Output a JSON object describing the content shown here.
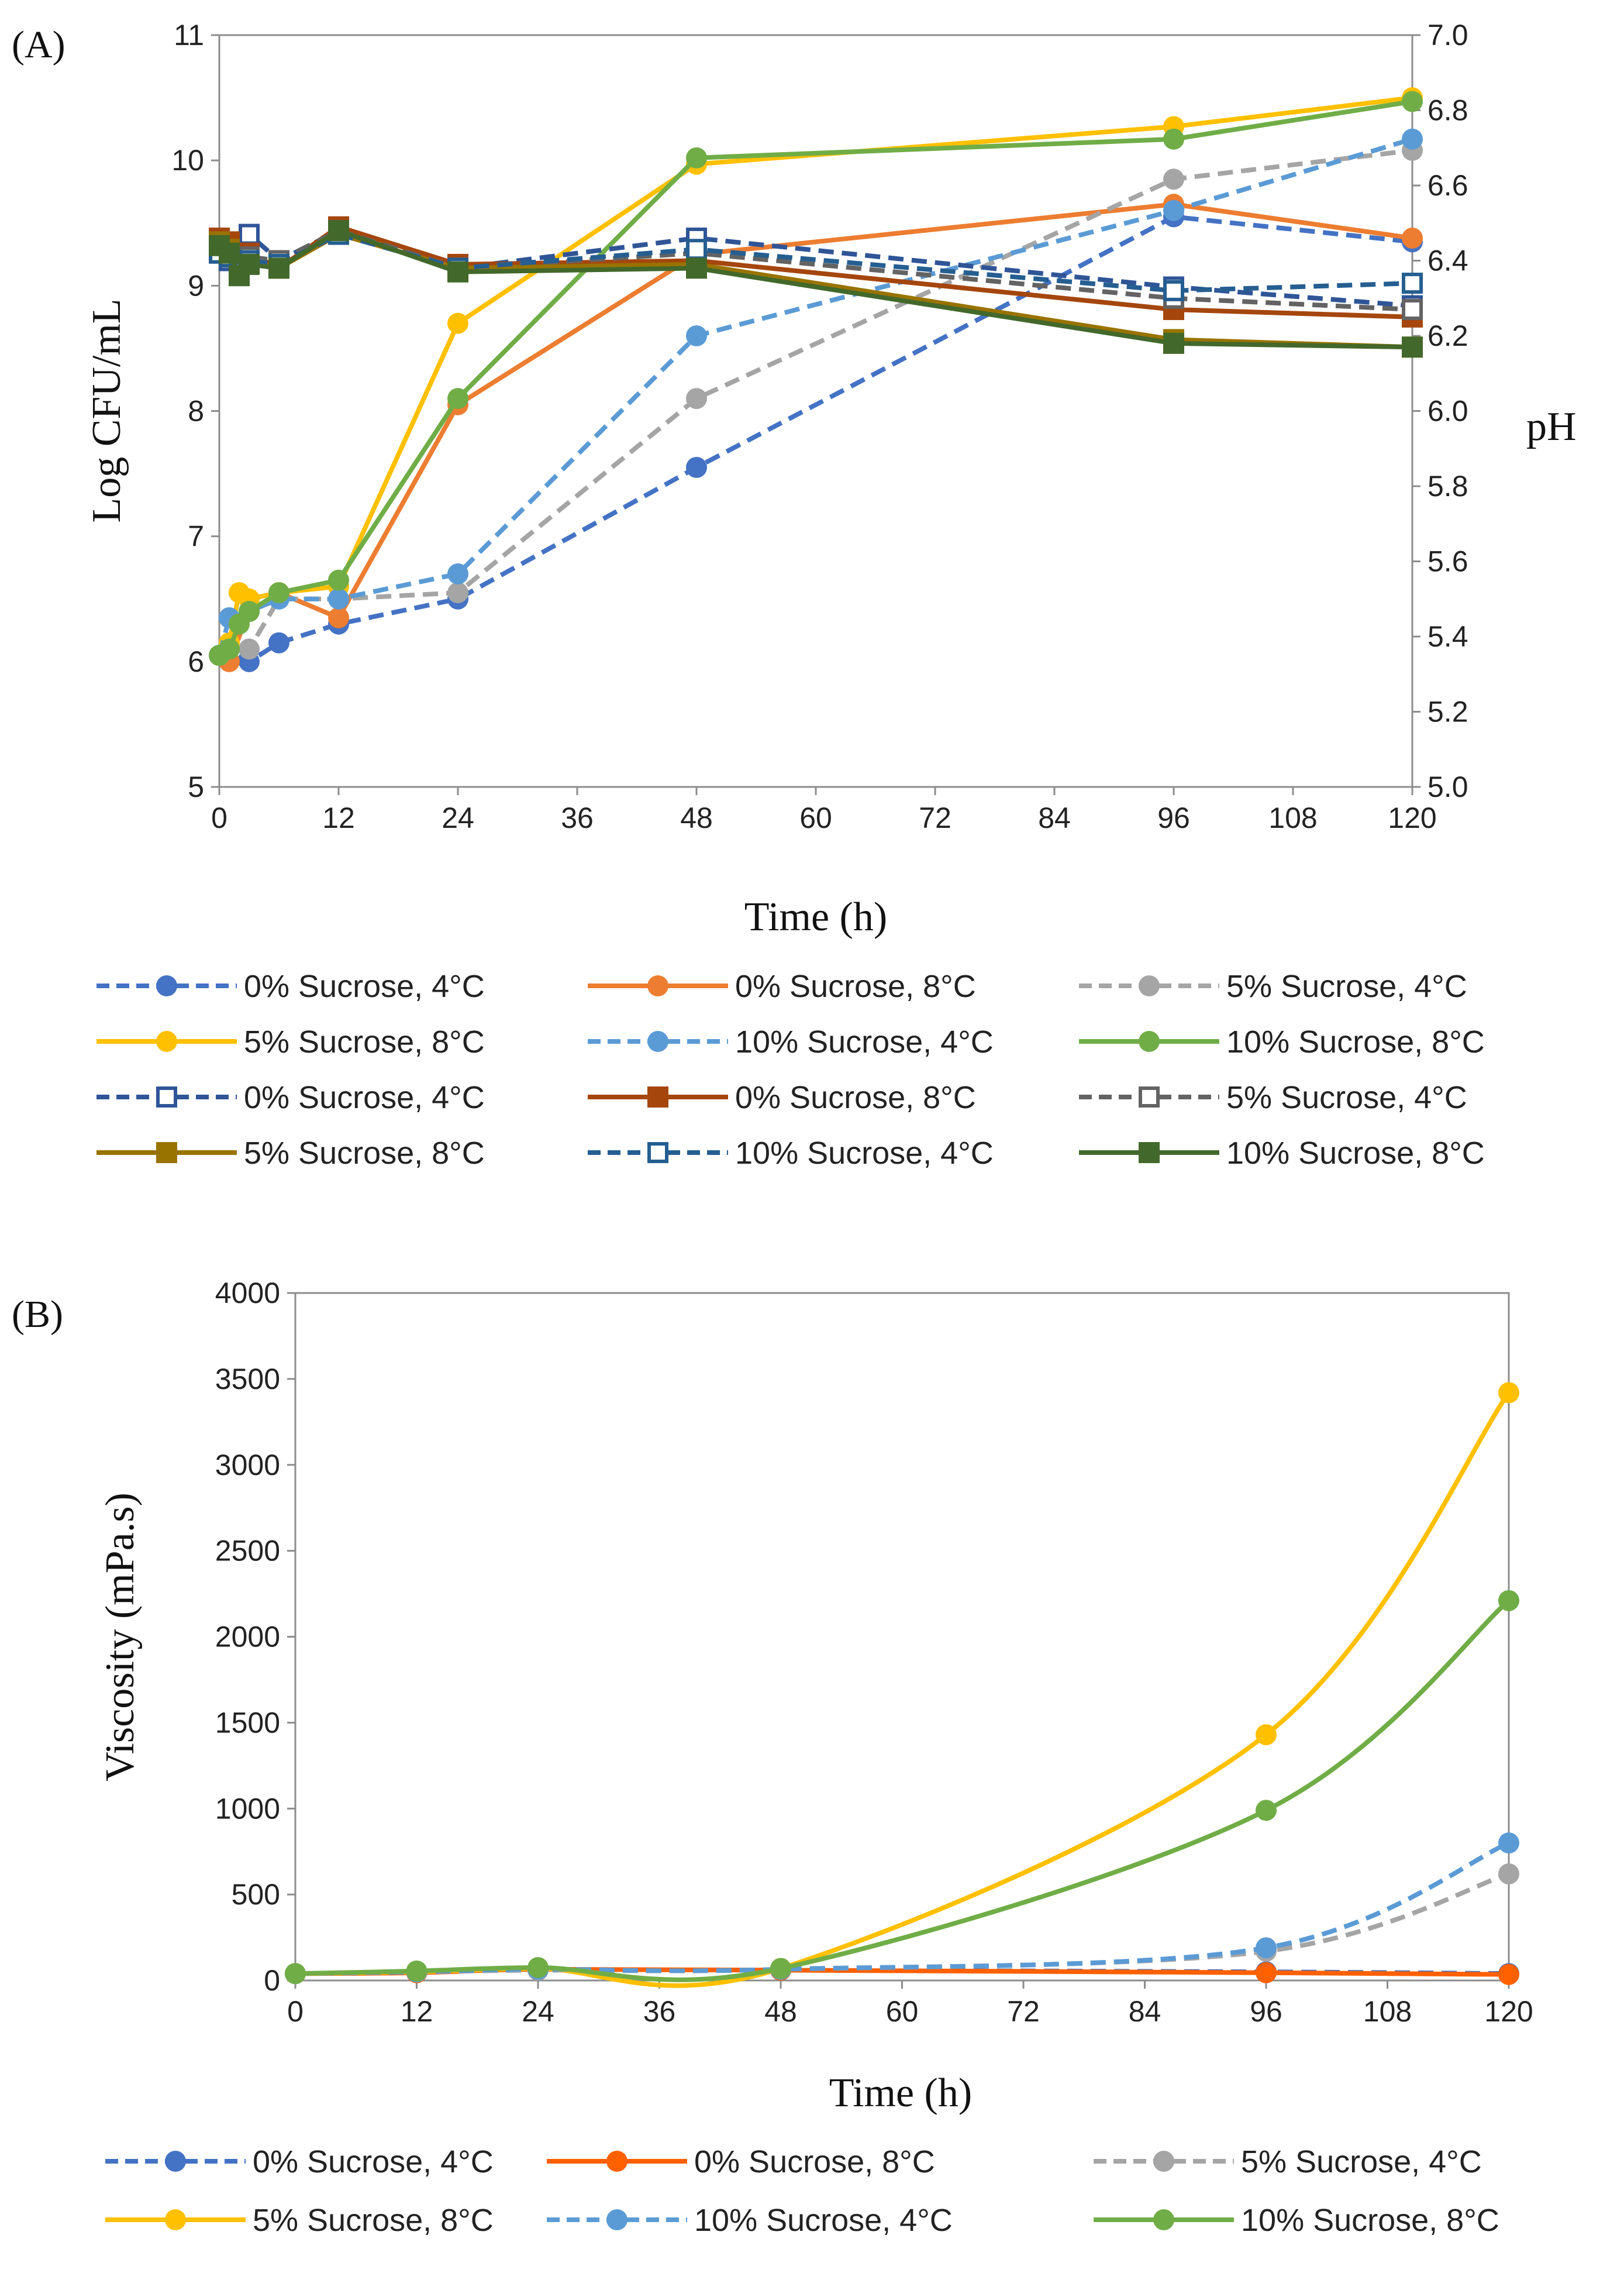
{
  "chart_data": [
    {
      "id": "A",
      "panel_label": "(A)",
      "type": "line",
      "xlabel": "Time (h)",
      "ylabel": "Log CFU/mL",
      "y2label": "pH",
      "xlim": [
        0,
        120
      ],
      "ylim": [
        5,
        11
      ],
      "y2lim": [
        5.0,
        7.0
      ],
      "x_ticks": [
        "0",
        "12",
        "24",
        "36",
        "48",
        "60",
        "72",
        "84",
        "96",
        "108",
        "120"
      ],
      "y_ticks": [
        "5",
        "6",
        "7",
        "8",
        "9",
        "10",
        "11"
      ],
      "y2_ticks": [
        "5.0",
        "5.2",
        "5.4",
        "5.6",
        "5.8",
        "6.0",
        "6.2",
        "6.4",
        "6.6",
        "6.8",
        "7.0"
      ],
      "grid": false,
      "legend_position": "bottom",
      "series": [
        {
          "name": "0% Sucrose, 4°C",
          "axis": "left",
          "color": "#4472C4",
          "dash": true,
          "marker": "circle",
          "x": [
            0,
            1,
            3,
            6,
            12,
            24,
            48,
            96,
            120
          ],
          "y": [
            6.05,
            6.1,
            6.0,
            6.15,
            6.3,
            6.5,
            7.55,
            9.55,
            9.35
          ]
        },
        {
          "name": "0% Sucrose, 8°C",
          "axis": "left",
          "color": "#ED7D31",
          "dash": false,
          "marker": "circle",
          "x": [
            0,
            1,
            3,
            6,
            12,
            24,
            48,
            96,
            120
          ],
          "y": [
            6.05,
            6.0,
            6.4,
            6.55,
            6.35,
            8.05,
            9.25,
            9.65,
            9.38
          ]
        },
        {
          "name": "5% Sucrose, 4°C",
          "axis": "left",
          "color": "#A5A5A5",
          "dash": true,
          "marker": "circle",
          "x": [
            0,
            1,
            3,
            6,
            12,
            24,
            48,
            96,
            120
          ],
          "y": [
            6.05,
            6.1,
            6.1,
            6.5,
            6.5,
            6.55,
            8.1,
            9.85,
            10.08
          ]
        },
        {
          "name": "5% Sucrose, 8°C",
          "axis": "left",
          "color": "#FFC000",
          "dash": false,
          "marker": "circle",
          "x": [
            0,
            1,
            2,
            3,
            6,
            12,
            24,
            48,
            96,
            120
          ],
          "y": [
            6.05,
            6.15,
            6.55,
            6.5,
            6.55,
            6.6,
            8.7,
            9.97,
            10.27,
            10.5
          ]
        },
        {
          "name": "10% Sucrose, 4°C",
          "axis": "left",
          "color": "#5B9BD5",
          "dash": true,
          "marker": "circle",
          "x": [
            0,
            1,
            3,
            6,
            12,
            24,
            48,
            96,
            120
          ],
          "y": [
            6.05,
            6.35,
            6.4,
            6.5,
            6.5,
            6.7,
            8.6,
            9.6,
            10.17
          ]
        },
        {
          "name": "10% Sucrose, 8°C",
          "axis": "left",
          "color": "#70AD47",
          "dash": false,
          "marker": "circle",
          "x": [
            0,
            1,
            2,
            3,
            6,
            12,
            24,
            48,
            96,
            120
          ],
          "y": [
            6.05,
            6.1,
            6.3,
            6.4,
            6.55,
            6.65,
            8.1,
            10.02,
            10.17,
            10.47
          ]
        },
        {
          "name": "0% Sucrose, 4°C",
          "axis": "right",
          "color": "#2F5597",
          "dash": true,
          "marker": "open-square",
          "x": [
            0,
            1,
            2,
            3,
            6,
            12,
            24,
            48,
            96,
            120
          ],
          "y": [
            6.42,
            6.4,
            6.38,
            6.47,
            6.4,
            6.48,
            6.38,
            6.46,
            6.33,
            6.28
          ]
        },
        {
          "name": "0% Sucrose, 8°C",
          "axis": "right",
          "color": "#A5460D",
          "dash": false,
          "marker": "square",
          "x": [
            0,
            1,
            2,
            3,
            6,
            12,
            24,
            48,
            96,
            120
          ],
          "y": [
            6.46,
            6.45,
            6.4,
            6.42,
            6.38,
            6.49,
            6.39,
            6.4,
            6.27,
            6.25
          ]
        },
        {
          "name": "5% Sucrose, 4°C",
          "axis": "right",
          "color": "#636363",
          "dash": true,
          "marker": "open-square",
          "x": [
            0,
            1,
            2,
            3,
            6,
            12,
            24,
            48,
            96,
            120
          ],
          "y": [
            6.43,
            6.42,
            6.38,
            6.41,
            6.4,
            6.48,
            6.38,
            6.42,
            6.3,
            6.27
          ]
        },
        {
          "name": "5% Sucrose, 8°C",
          "axis": "right",
          "color": "#997300",
          "dash": false,
          "marker": "square",
          "x": [
            0,
            1,
            2,
            3,
            6,
            12,
            24,
            48,
            96,
            120
          ],
          "y": [
            6.45,
            6.43,
            6.38,
            6.4,
            6.38,
            6.47,
            6.38,
            6.39,
            6.19,
            6.17
          ]
        },
        {
          "name": "10% Sucrose, 4°C",
          "axis": "right",
          "color": "#255E91",
          "dash": true,
          "marker": "open-square",
          "x": [
            0,
            1,
            2,
            3,
            6,
            12,
            24,
            48,
            96,
            120
          ],
          "y": [
            6.42,
            6.41,
            6.37,
            6.4,
            6.39,
            6.47,
            6.38,
            6.43,
            6.32,
            6.34
          ]
        },
        {
          "name": "10% Sucrose, 8°C",
          "axis": "right",
          "color": "#43682B",
          "dash": false,
          "marker": "square",
          "x": [
            0,
            1,
            2,
            3,
            6,
            12,
            24,
            48,
            96,
            120
          ],
          "y": [
            6.44,
            6.42,
            6.36,
            6.39,
            6.38,
            6.48,
            6.37,
            6.38,
            6.18,
            6.17
          ]
        }
      ]
    },
    {
      "id": "B",
      "panel_label": "(B)",
      "type": "line",
      "xlabel": "Time (h)",
      "ylabel": "Viscosity (mPa.s)",
      "xlim": [
        0,
        120
      ],
      "ylim": [
        0,
        4000
      ],
      "x_ticks": [
        "0",
        "12",
        "24",
        "36",
        "48",
        "60",
        "72",
        "84",
        "96",
        "108",
        "120"
      ],
      "y_ticks": [
        "0",
        "500",
        "1000",
        "1500",
        "2000",
        "2500",
        "3000",
        "3500",
        "4000"
      ],
      "grid": false,
      "legend_position": "bottom",
      "series": [
        {
          "name": "0% Sucrose, 4°C",
          "color": "#4472C4",
          "dash": true,
          "marker": "circle",
          "x": [
            0,
            12,
            24,
            48,
            96,
            120
          ],
          "y": [
            40,
            50,
            60,
            60,
            50,
            40
          ]
        },
        {
          "name": "0% Sucrose, 8°C",
          "color": "#FF6000",
          "dash": false,
          "marker": "circle",
          "x": [
            0,
            12,
            24,
            48,
            96,
            120
          ],
          "y": [
            40,
            45,
            65,
            60,
            45,
            35
          ]
        },
        {
          "name": "5% Sucrose, 4°C",
          "color": "#A5A5A5",
          "dash": true,
          "marker": "circle",
          "x": [
            0,
            12,
            24,
            48,
            96,
            120
          ],
          "y": [
            40,
            50,
            60,
            65,
            170,
            620
          ]
        },
        {
          "name": "5% Sucrose, 8°C",
          "color": "#FFC000",
          "dash": false,
          "marker": "circle",
          "x": [
            0,
            12,
            24,
            48,
            96,
            120
          ],
          "y": [
            40,
            50,
            70,
            70,
            1430,
            3420
          ]
        },
        {
          "name": "10% Sucrose, 4°C",
          "color": "#5B9BD5",
          "dash": true,
          "marker": "circle",
          "x": [
            0,
            12,
            24,
            48,
            96,
            120
          ],
          "y": [
            40,
            50,
            65,
            65,
            190,
            800
          ]
        },
        {
          "name": "10% Sucrose, 8°C",
          "color": "#70AD47",
          "dash": false,
          "marker": "circle",
          "x": [
            0,
            12,
            24,
            48,
            96,
            120
          ],
          "y": [
            40,
            55,
            75,
            70,
            990,
            2210
          ]
        }
      ]
    }
  ]
}
